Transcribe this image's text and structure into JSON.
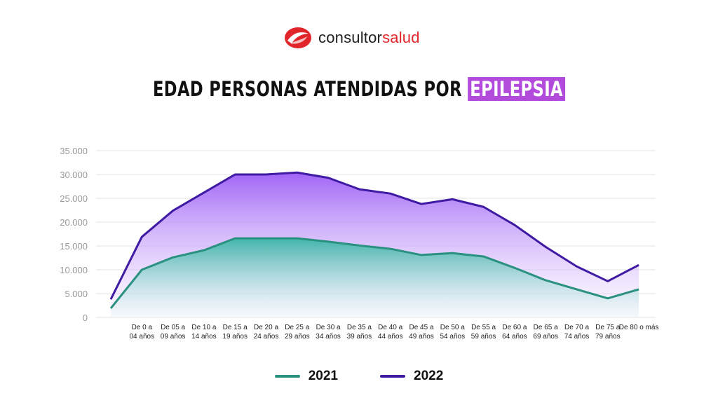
{
  "logo": {
    "text_main": "consultor",
    "text_accent": "salud",
    "brand_color": "#e0262b"
  },
  "title": {
    "main": "EDAD PERSONAS ATENDIDAS POR",
    "highlight": "EPILEPSIA",
    "highlight_color": "#b24bdc"
  },
  "chart_data": {
    "type": "area",
    "title": "EDAD PERSONAS ATENDIDAS POR EPILEPSIA",
    "xlabel": "",
    "ylabel": "",
    "ylim": [
      0,
      35000
    ],
    "yticks": [
      "0",
      "5.000",
      "10.000",
      "15.000",
      "20.000",
      "25.000",
      "30.000",
      "35.000"
    ],
    "grid": true,
    "legend": "bottom",
    "categories": [
      "",
      "De 0 a|04 años",
      "De 05 a|09 años",
      "De 10 a|14 años",
      "De 15 a|19 años",
      "De 20 a|24 años",
      "De 25 a|29 años",
      "De 30 a|34 años",
      "De 35 a|39 años",
      "De 40 a|44 años",
      "De 45 a|49 años",
      "De 50 a|54 años",
      "De 55 a|59 años",
      "De 60 a|64 años",
      "De 65 a|69 años",
      "De 70 a|74 años",
      "De 75 a|79 años",
      "De 80 o más"
    ],
    "series": [
      {
        "name": "2021",
        "color": "#2a9180",
        "values": [
          1900,
          10000,
          12600,
          14100,
          16600,
          16600,
          16600,
          15900,
          15100,
          14400,
          13100,
          13500,
          12800,
          10400,
          7800,
          5900,
          4000,
          5900
        ]
      },
      {
        "name": "2022",
        "color": "#3f1aa3",
        "values": [
          3800,
          16900,
          22400,
          26200,
          30000,
          30000,
          30400,
          29300,
          26900,
          26000,
          23800,
          24800,
          23200,
          19400,
          14800,
          10700,
          7600,
          11000
        ]
      }
    ]
  }
}
